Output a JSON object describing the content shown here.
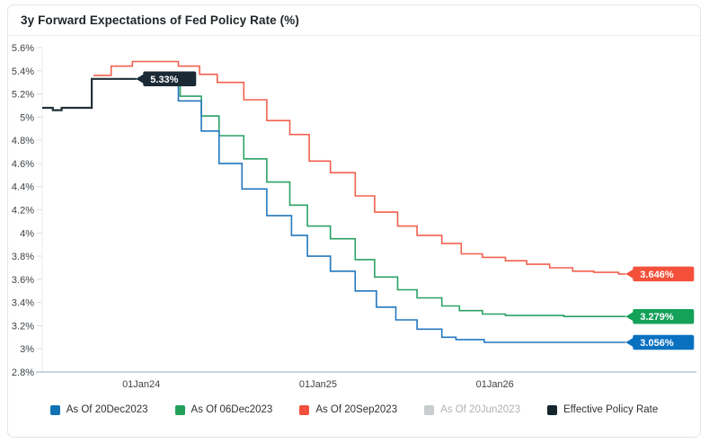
{
  "chart_data": {
    "type": "line",
    "interpolation": "step-after",
    "title": "3y Forward Expectations of Fed Policy Rate (%)",
    "grid": "off",
    "legend_position": "bottom",
    "y_axis": {
      "min": 2.8,
      "max": 5.6,
      "step": 0.2,
      "unit": "%",
      "tick_labels": [
        "5.6%",
        "5.4%",
        "5.2%",
        "5%",
        "4.8%",
        "4.6%",
        "4.4%",
        "4.2%",
        "4%",
        "3.8%",
        "3.6%",
        "3.4%",
        "3.2%",
        "3%",
        "2.8%"
      ]
    },
    "x_axis": {
      "min": 2023.44,
      "max": 2027.14,
      "ticks": [
        {
          "pos": 2024.0,
          "label": "01Jan24"
        },
        {
          "pos": 2025.0,
          "label": "01Jan25"
        },
        {
          "pos": 2026.0,
          "label": "01Jan26"
        }
      ]
    },
    "series": [
      {
        "id": "as-of-20sep2023",
        "name": "As Of 20Sep2023",
        "color": "#f2604d",
        "label_color": "#f4503a",
        "width": 1.6,
        "end_label": "3.646%",
        "end_x": 2026.74,
        "points": [
          [
            2023.73,
            5.36
          ],
          [
            2023.83,
            5.44
          ],
          [
            2023.95,
            5.48
          ],
          [
            2024.21,
            5.44
          ],
          [
            2024.33,
            5.37
          ],
          [
            2024.43,
            5.3
          ],
          [
            2024.58,
            5.15
          ],
          [
            2024.71,
            4.97
          ],
          [
            2024.84,
            4.85
          ],
          [
            2024.95,
            4.62
          ],
          [
            2025.07,
            4.52
          ],
          [
            2025.21,
            4.32
          ],
          [
            2025.32,
            4.18
          ],
          [
            2025.45,
            4.06
          ],
          [
            2025.56,
            3.98
          ],
          [
            2025.7,
            3.91
          ],
          [
            2025.81,
            3.82
          ],
          [
            2025.93,
            3.79
          ],
          [
            2026.06,
            3.76
          ],
          [
            2026.18,
            3.73
          ],
          [
            2026.31,
            3.7
          ],
          [
            2026.44,
            3.67
          ],
          [
            2026.56,
            3.66
          ],
          [
            2026.7,
            3.646
          ]
        ]
      },
      {
        "id": "as-of-06dec2023",
        "name": "As Of 06Dec2023",
        "color": "#2ba164",
        "label_color": "#14a158",
        "width": 1.6,
        "end_label": "3.279%",
        "end_x": 2026.74,
        "points": [
          [
            2023.88,
            5.33
          ],
          [
            2024.22,
            5.18
          ],
          [
            2024.34,
            5.01
          ],
          [
            2024.44,
            4.84
          ],
          [
            2024.58,
            4.64
          ],
          [
            2024.71,
            4.44
          ],
          [
            2024.84,
            4.24
          ],
          [
            2024.94,
            4.06
          ],
          [
            2025.07,
            3.95
          ],
          [
            2025.21,
            3.77
          ],
          [
            2025.32,
            3.62
          ],
          [
            2025.45,
            3.51
          ],
          [
            2025.56,
            3.44
          ],
          [
            2025.7,
            3.37
          ],
          [
            2025.8,
            3.33
          ],
          [
            2025.93,
            3.3
          ],
          [
            2026.06,
            3.288
          ],
          [
            2026.39,
            3.279
          ]
        ]
      },
      {
        "id": "as-of-20dec2023",
        "name": "As Of 20Dec2023",
        "color": "#2277bd",
        "label_color": "#0a70c0",
        "width": 1.6,
        "end_label": "3.056%",
        "end_x": 2026.74,
        "points": [
          [
            2023.96,
            5.33
          ],
          [
            2024.21,
            5.14
          ],
          [
            2024.34,
            4.88
          ],
          [
            2024.44,
            4.6
          ],
          [
            2024.57,
            4.38
          ],
          [
            2024.71,
            4.15
          ],
          [
            2024.85,
            3.98
          ],
          [
            2024.94,
            3.8
          ],
          [
            2025.07,
            3.67
          ],
          [
            2025.21,
            3.5
          ],
          [
            2025.33,
            3.36
          ],
          [
            2025.44,
            3.25
          ],
          [
            2025.56,
            3.17
          ],
          [
            2025.7,
            3.1
          ],
          [
            2025.78,
            3.08
          ],
          [
            2025.94,
            3.056
          ]
        ]
      },
      {
        "id": "effective-policy-rate",
        "name": "Effective Policy Rate",
        "color": "#223039",
        "label_color": "#1b2a34",
        "width": 2.2,
        "end_label": "5.33%",
        "end_x": 2023.97,
        "points": [
          [
            2023.44,
            5.08
          ],
          [
            2023.5,
            5.06
          ],
          [
            2023.55,
            5.08
          ],
          [
            2023.72,
            5.33
          ]
        ]
      }
    ],
    "legend": [
      {
        "label": "As Of 20Dec2023",
        "color": "#1272b6",
        "disabled": false
      },
      {
        "label": "As Of 06Dec2023",
        "color": "#22a05a",
        "disabled": false
      },
      {
        "label": "As Of 20Sep2023",
        "color": "#f4503c",
        "disabled": false
      },
      {
        "label": "As Of 20Jun2023",
        "color": "#c9cdd0",
        "disabled": true
      },
      {
        "label": "Effective Policy Rate",
        "color": "#16242e",
        "disabled": false
      }
    ]
  }
}
